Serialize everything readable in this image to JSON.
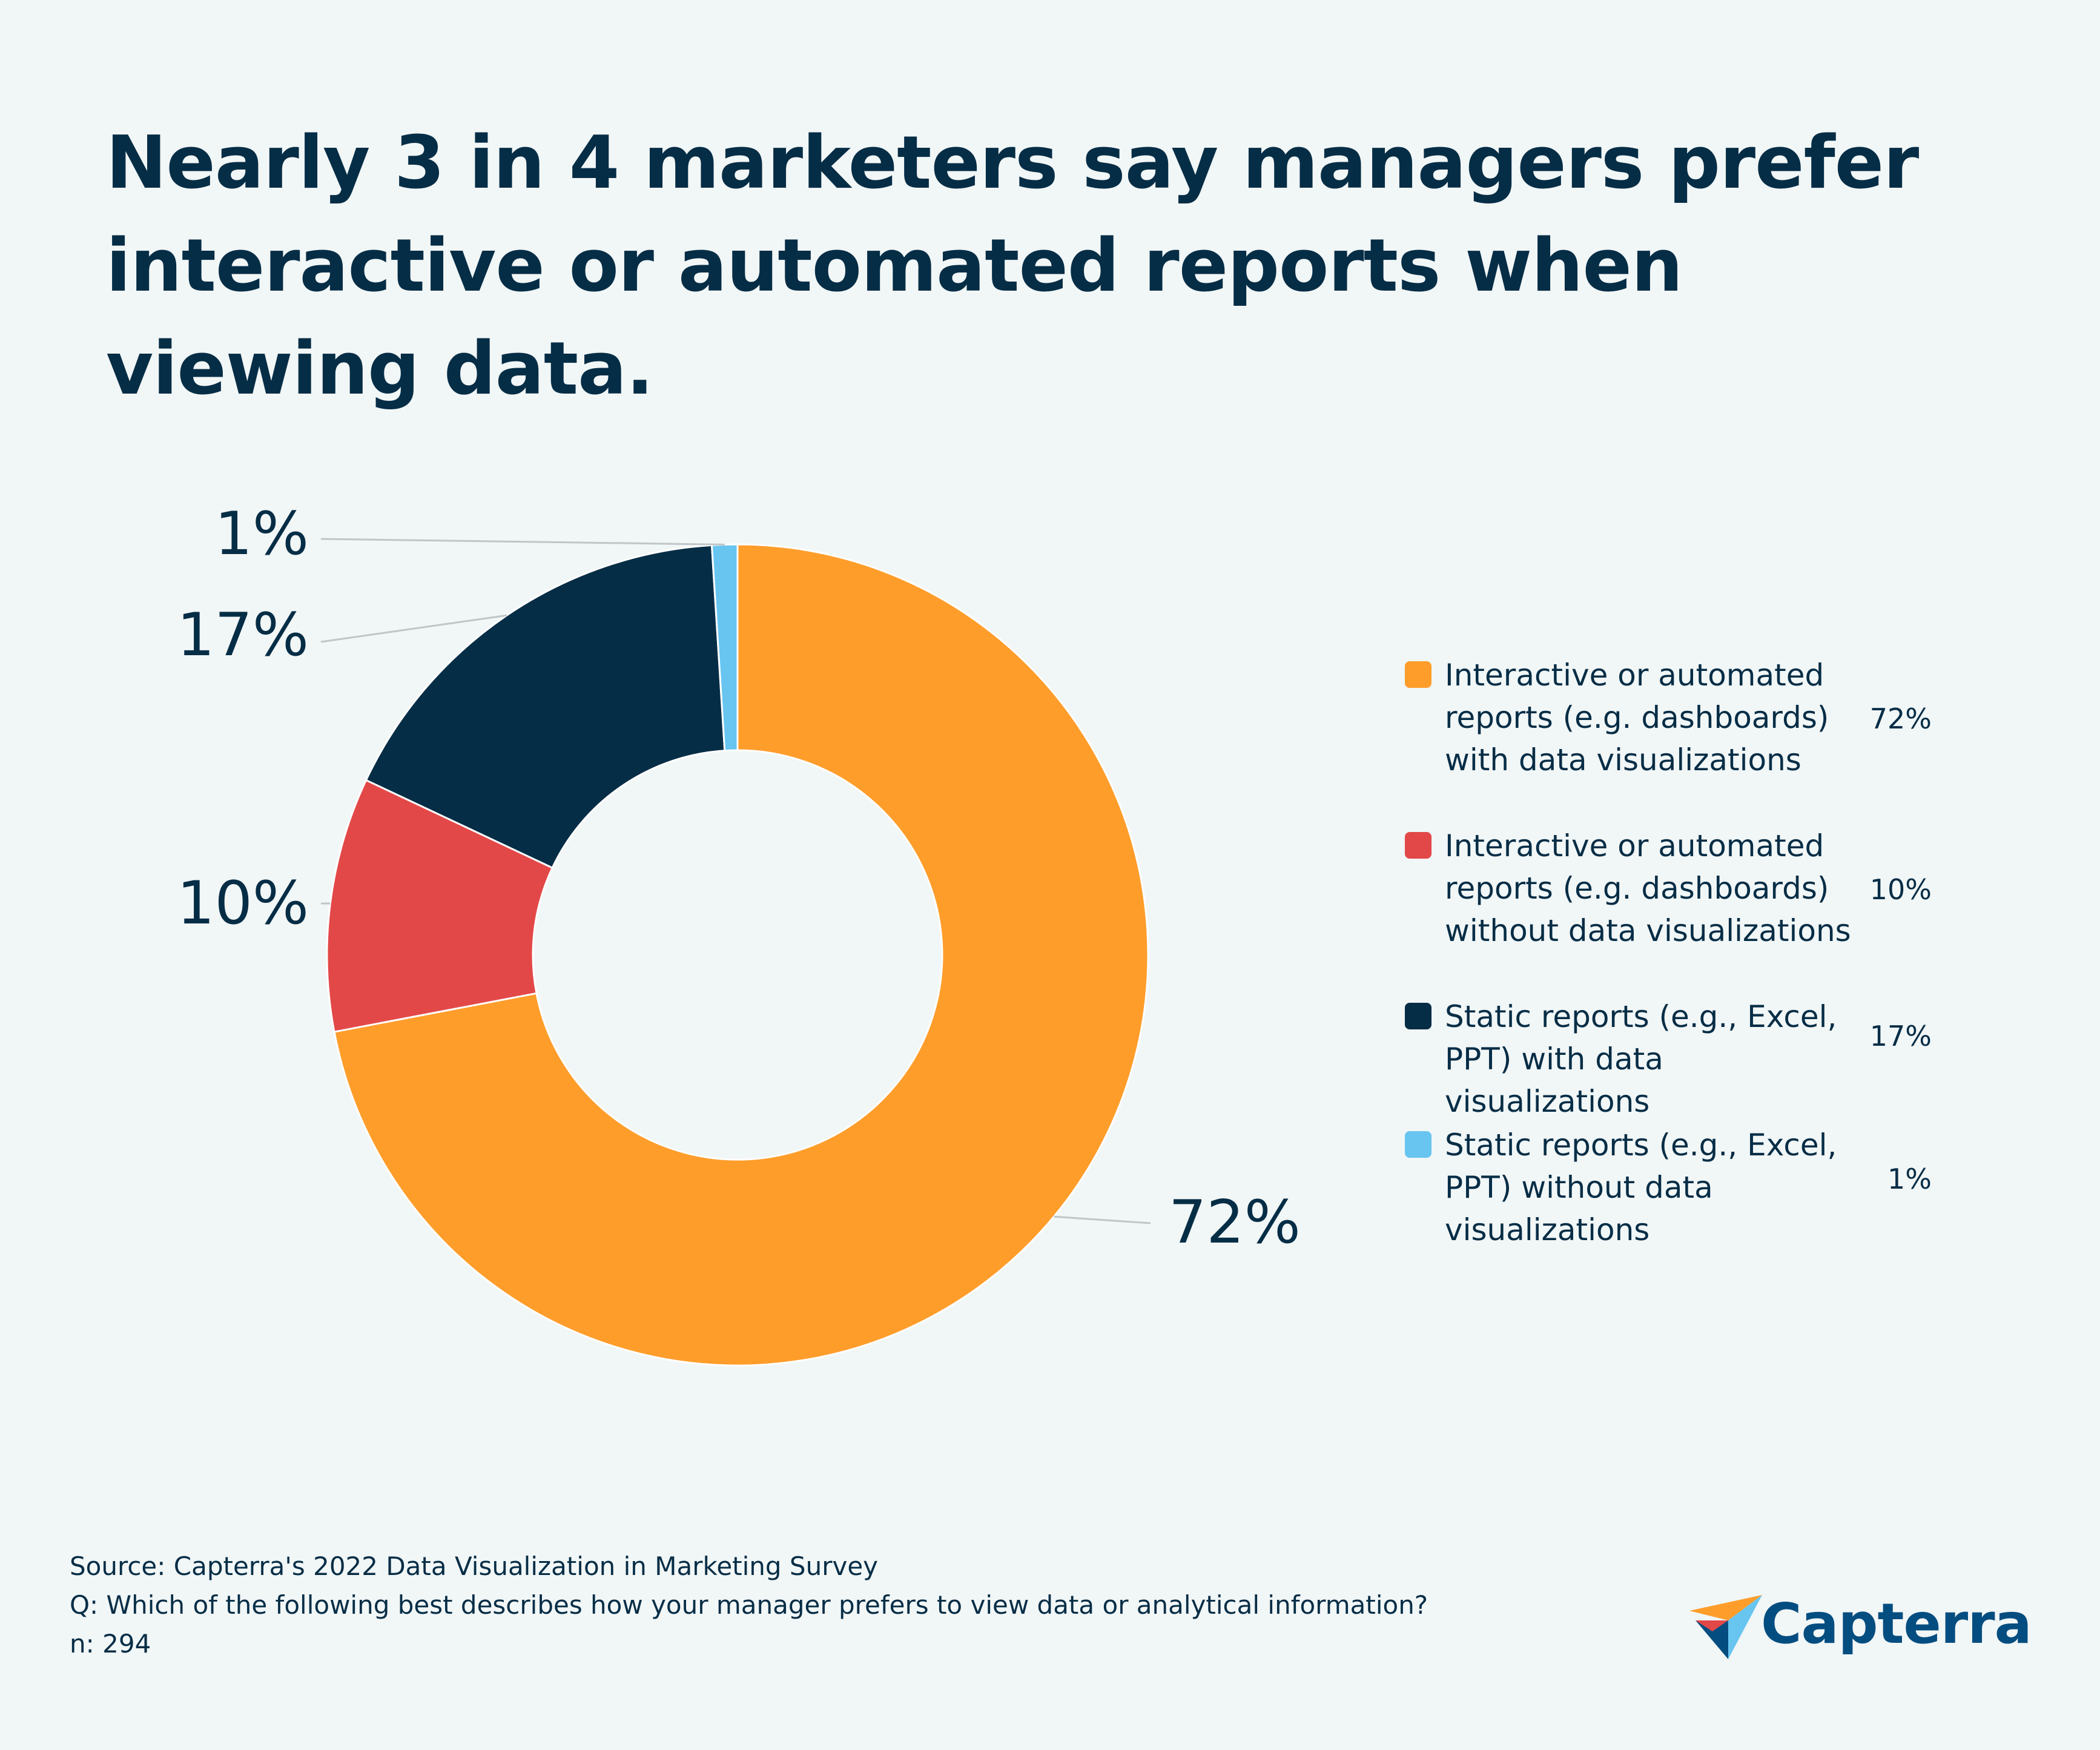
{
  "title": "Nearly 3 in 4 marketers say managers prefer interactive or automated reports when viewing data.",
  "chart_data": {
    "type": "pie",
    "title": "Nearly 3 in 4 marketers say managers prefer interactive or automated reports when viewing data.",
    "hole": true,
    "slices": [
      {
        "label": "Interactive or automated reports (e.g. dashboards) with data visualizations",
        "value": 72,
        "display": "72%",
        "color": "#ff9d2b"
      },
      {
        "label": "Interactive or automated reports (e.g. dashboards) without data visualizations",
        "value": 10,
        "display": "10%",
        "color": "#e34848"
      },
      {
        "label": "Static reports (e.g., Excel, PPT) with data visualizations",
        "value": 17,
        "display": "17%",
        "color": "#062d46"
      },
      {
        "label": "Static reports (e.g., Excel, PPT) without data visualizations",
        "value": 1,
        "display": "1%",
        "color": "#68c5f0"
      }
    ],
    "legend_position": "right"
  },
  "footer": {
    "source": "Source: Capterra's 2022 Data Visualization in Marketing Survey",
    "question": "Q: Which of the following best describes how your manager prefers to view data or analytical information?",
    "n": "n: 294"
  },
  "logo": {
    "text": "Capterra",
    "icon": "capterra-arrow-logo-icon"
  }
}
